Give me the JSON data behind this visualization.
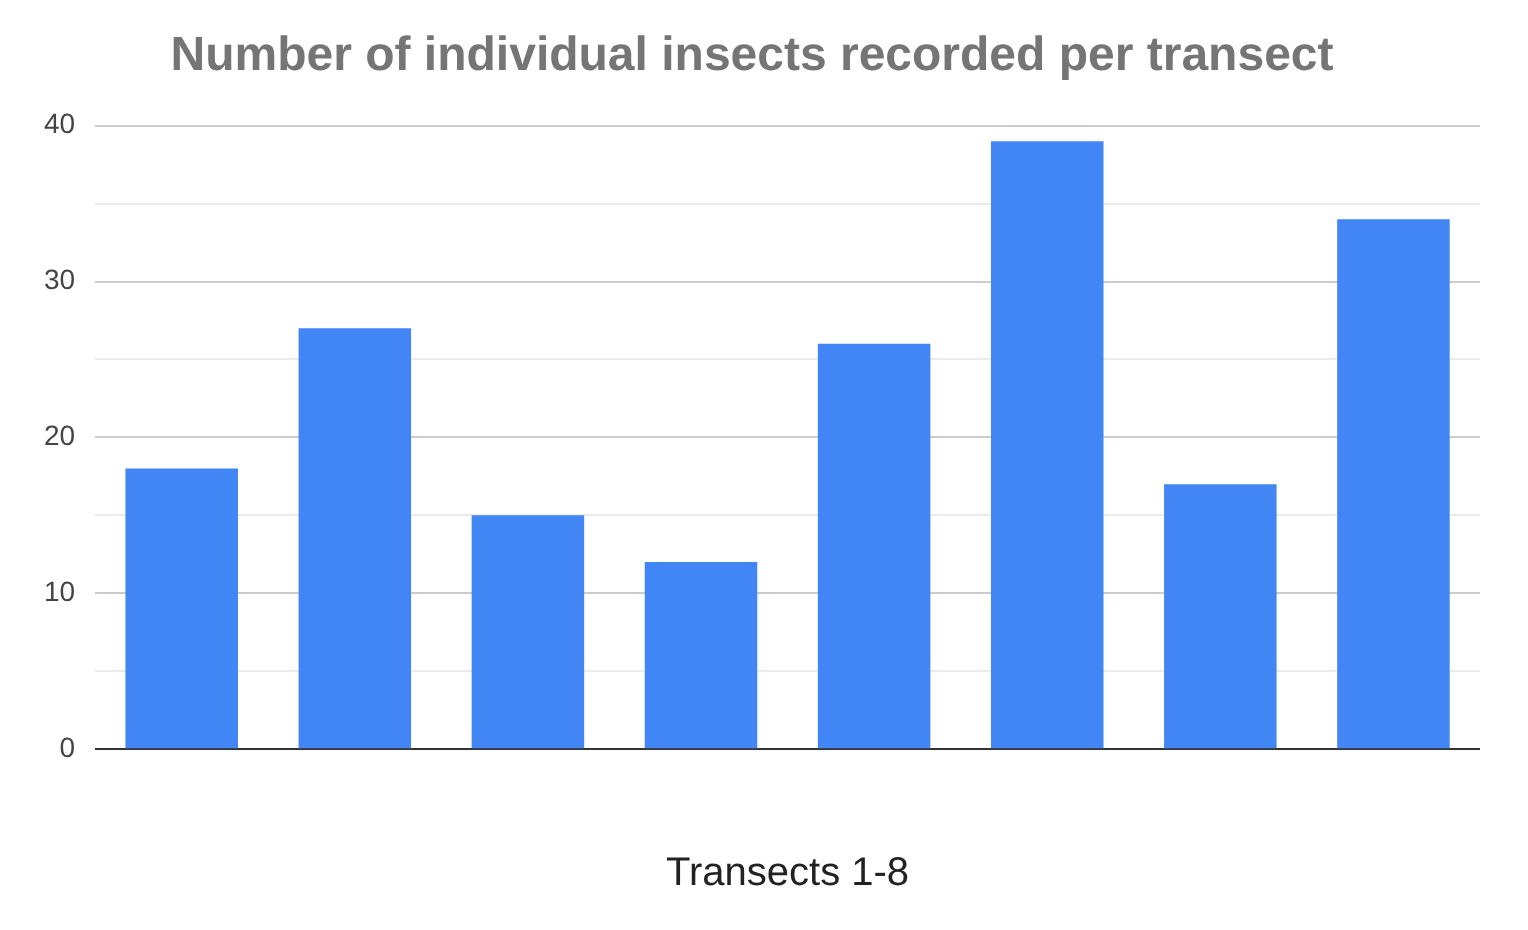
{
  "chart_data": {
    "type": "bar",
    "title": "Number of individual insects recorded per transect",
    "xlabel": "Transects 1-8",
    "categories": [
      null,
      null,
      null,
      null,
      null,
      null,
      null,
      null
    ],
    "values": [
      18,
      27,
      15,
      12,
      26,
      39,
      17,
      34
    ],
    "color": "#4285f4",
    "ylim": [
      0,
      40
    ],
    "yticks": [
      0,
      {
        "value": 5,
        "label": null
      },
      10,
      {
        "value": 15,
        "label": null
      },
      20,
      {
        "value": 25,
        "label": null
      },
      30,
      {
        "value": 35,
        "label": null
      },
      40
    ],
    "grid": "y",
    "legend": false
  }
}
